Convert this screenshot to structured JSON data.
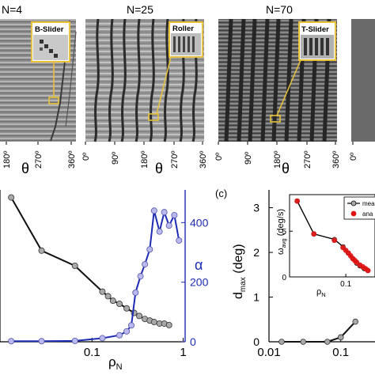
{
  "top_panels": [
    {
      "n_label": "N=4",
      "inset_label": "B-Slider",
      "ticks": [
        "180º",
        "270º",
        "360º"
      ],
      "axis_symbol": "θ"
    },
    {
      "n_label": "N=25",
      "inset_label": "Roller",
      "ticks": [
        "0º",
        "90º",
        "180º",
        "270º",
        "360º"
      ],
      "axis_symbol": "θ"
    },
    {
      "n_label": "N=70",
      "inset_label": "T-Slider",
      "ticks": [
        "0º",
        "90º",
        "180º",
        "270º",
        "360º"
      ],
      "axis_symbol": "θ"
    },
    {
      "ticks": [
        "0º"
      ]
    }
  ],
  "chart_data": [
    {
      "type": "line",
      "xscale": "log",
      "xlabel": "ρN",
      "x_ticks": [
        "0.1",
        "1"
      ],
      "right_axis_label": "α",
      "right_ticks": [
        "0",
        "200",
        "400"
      ],
      "right_ylim": [
        0,
        470
      ],
      "colors": {
        "black_series": "#111111",
        "blue_series": "#1d2bb5",
        "blue_fill": "#b9b9f0",
        "gray_fill": "#a9a9a9"
      },
      "series": [
        {
          "axis": "left",
          "x": [
            0.013,
            0.028,
            0.065,
            0.13,
            0.15,
            0.17,
            0.2,
            0.24,
            0.29,
            0.33,
            0.38,
            0.43,
            0.48,
            0.55,
            0.62,
            0.7
          ],
          "y": [
            0.95,
            0.6,
            0.5,
            0.33,
            0.3,
            0.27,
            0.25,
            0.22,
            0.19,
            0.17,
            0.15,
            0.14,
            0.13,
            0.12,
            0.12,
            0.11
          ]
        },
        {
          "axis": "right",
          "x": [
            0.013,
            0.028,
            0.065,
            0.13,
            0.2,
            0.24,
            0.27,
            0.3,
            0.34,
            0.38,
            0.43,
            0.48,
            0.55,
            0.62,
            0.7,
            0.8,
            0.9
          ],
          "y": [
            2,
            2,
            3,
            12,
            22,
            35,
            55,
            165,
            220,
            260,
            310,
            440,
            370,
            435,
            390,
            425,
            340
          ]
        }
      ]
    },
    {
      "type": "line",
      "xscale": "log",
      "panel_label": "(c)",
      "ylabel": "dmax (deg)",
      "y_ticks": [
        "0",
        "1",
        "2",
        "3"
      ],
      "x_ticks": [
        "0.01",
        "0.1"
      ],
      "ylim": [
        0,
        3.4
      ],
      "series": [
        {
          "x": [
            0.015,
            0.03,
            0.065,
            0.1,
            0.16
          ],
          "y": [
            0,
            0,
            0,
            0.1,
            0.45
          ]
        }
      ],
      "inset": {
        "type": "line",
        "xscale": "log",
        "ylabel": "ωavg (deg/s)",
        "xlabel": "ρN",
        "y_ticks": [
          "0",
          "5"
        ],
        "x_ticks": [
          "0.1"
        ],
        "ylim": [
          0,
          9
        ],
        "legend": [
          "mea",
          "ana"
        ],
        "series": [
          {
            "name": "mea",
            "x": [
              0.016,
              0.03,
              0.065,
              0.09,
              0.11,
              0.13,
              0.15,
              0.17,
              0.2,
              0.23
            ],
            "y": [
              8.3,
              4.7,
              4.1,
              3.3,
              2.6,
              2.0,
              1.5,
              1.2,
              0.9,
              0.7
            ]
          },
          {
            "name": "ana",
            "x": [
              0.016,
              0.03,
              0.065,
              0.09,
              0.1,
              0.11,
              0.12,
              0.13,
              0.14,
              0.15,
              0.17,
              0.19,
              0.21,
              0.23
            ],
            "y": [
              8.3,
              4.7,
              4.0,
              3.2,
              2.9,
              2.6,
              2.3,
              2.0,
              1.8,
              1.6,
              1.3,
              1.1,
              0.9,
              0.7
            ]
          }
        ]
      }
    }
  ]
}
